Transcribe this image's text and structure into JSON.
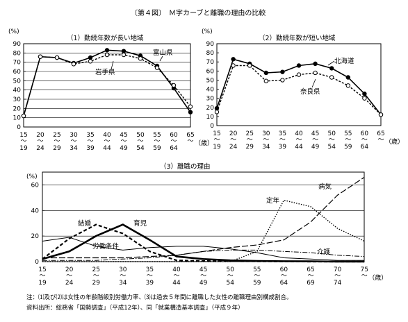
{
  "figure": {
    "title": "〔第４図〕　Ｍ字カーブと離職の理由の比較",
    "notes": [
      "注：⑴及び⑵は女性の年齢階級別労働力率、⑶は過去５年間に離職した女性の離職理由別構成割合。",
      "資料出所：総務省「国勢調査」（平成12年）、同「就業構造基本調査」（平成９年）"
    ],
    "age_unit": "（歳）"
  },
  "chart_data": [
    {
      "type": "line",
      "title": "（1）勤続年数が長い地域",
      "ylabel": "(%)",
      "ylim": [
        0,
        90
      ],
      "yticks": [
        0,
        10,
        20,
        30,
        40,
        50,
        60,
        70,
        80,
        90
      ],
      "categories": [
        "15～19",
        "20～24",
        "25～29",
        "30～34",
        "35～39",
        "40～44",
        "45～49",
        "50～54",
        "55～59",
        "60～64",
        "65～"
      ],
      "cat_top": [
        "15",
        "20",
        "25",
        "30",
        "35",
        "40",
        "45",
        "50",
        "55",
        "60",
        "65"
      ],
      "cat_bottom": [
        "19",
        "24",
        "29",
        "34",
        "39",
        "44",
        "49",
        "54",
        "59",
        "64",
        ""
      ],
      "series": [
        {
          "name": "富山県",
          "style": "solid",
          "marker": "filled",
          "values": [
            12,
            76,
            75,
            69,
            75,
            83,
            82,
            77,
            66,
            42,
            16
          ]
        },
        {
          "name": "岩手県",
          "style": "dashed",
          "marker": "open",
          "values": [
            12,
            76,
            75,
            68,
            71,
            78,
            78,
            74,
            64,
            45,
            22
          ]
        }
      ]
    },
    {
      "type": "line",
      "title": "（2）勤続年数が短い地域",
      "ylabel": "(%)",
      "ylim": [
        0,
        90
      ],
      "yticks": [
        0,
        10,
        20,
        30,
        40,
        50,
        60,
        70,
        80,
        90
      ],
      "categories": [
        "15～19",
        "20～24",
        "25～29",
        "30～34",
        "35～39",
        "40～44",
        "45～49",
        "50～54",
        "55～59",
        "60～64",
        "65～"
      ],
      "cat_top": [
        "15",
        "20",
        "25",
        "30",
        "35",
        "40",
        "45",
        "50",
        "55",
        "60",
        "65"
      ],
      "cat_bottom": [
        "19",
        "24",
        "29",
        "34",
        "39",
        "44",
        "49",
        "54",
        "59",
        "64",
        ""
      ],
      "series": [
        {
          "name": "北海道",
          "style": "solid",
          "marker": "filled",
          "values": [
            19,
            73,
            68,
            58,
            59,
            66,
            68,
            63,
            53,
            35,
            12
          ]
        },
        {
          "name": "奈良県",
          "style": "dashed",
          "marker": "open",
          "values": [
            15,
            66,
            66,
            49,
            50,
            56,
            58,
            53,
            44,
            30,
            12
          ]
        }
      ]
    },
    {
      "type": "line",
      "title": "（3）離職の理由",
      "ylabel": "(%)",
      "ylim": [
        0,
        70
      ],
      "yticks": [
        0,
        20,
        40,
        60
      ],
      "categories": [
        "15～19",
        "20～24",
        "25～29",
        "30～34",
        "35～39",
        "40～44",
        "45～49",
        "50～54",
        "55～59",
        "60～64",
        "65～69",
        "70～74",
        "75～"
      ],
      "cat_top": [
        "15",
        "20",
        "25",
        "30",
        "35",
        "40",
        "45",
        "50",
        "55",
        "60",
        "65",
        "70",
        "75"
      ],
      "cat_bottom": [
        "19",
        "24",
        "29",
        "34",
        "39",
        "44",
        "49",
        "54",
        "59",
        "64",
        "69",
        "74",
        ""
      ],
      "series": [
        {
          "name": "結婚",
          "style": "dashed-heavy",
          "values": [
            2,
            18,
            29,
            22,
            8,
            1,
            0.5,
            0.3,
            0.2,
            0.1,
            0,
            0,
            0
          ]
        },
        {
          "name": "育児",
          "style": "solid-heavy",
          "values": [
            2,
            8,
            20,
            29,
            17,
            4,
            2,
            1,
            0.5,
            0.3,
            0.2,
            0,
            0
          ]
        },
        {
          "name": "労働条件",
          "style": "solid-thin",
          "values": [
            16,
            19,
            12,
            9,
            11,
            12,
            12,
            10,
            7,
            3,
            2,
            1,
            1
          ]
        },
        {
          "name": "定年",
          "style": "dotted",
          "values": [
            0,
            0,
            0,
            0,
            0,
            0,
            0,
            0,
            8,
            48,
            43,
            26,
            16
          ]
        },
        {
          "name": "病気",
          "style": "long-dash",
          "values": [
            3,
            3,
            3,
            3,
            4,
            5,
            8,
            11,
            13,
            17,
            31,
            52,
            66
          ]
        },
        {
          "name": "介護",
          "style": "dash-dot",
          "values": [
            1,
            1,
            1,
            2,
            3,
            5,
            8,
            9,
            9,
            8,
            7,
            5,
            4
          ]
        }
      ]
    }
  ]
}
